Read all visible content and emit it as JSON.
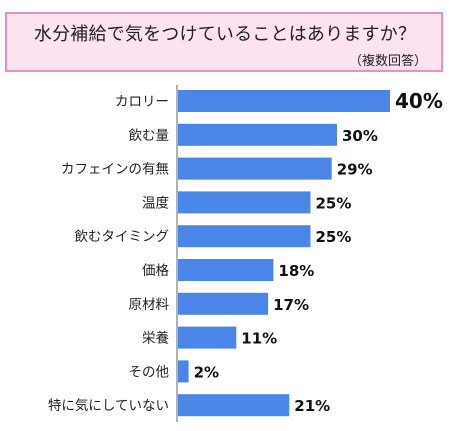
{
  "title": "水分補給で気をつけていることはありますか？",
  "subtitle": "（複数回答）",
  "colors": {
    "bar": "#4a86e8",
    "title_bg": "#fde3ef",
    "title_border": "#ee8fbf"
  },
  "chart_data": {
    "type": "bar",
    "orientation": "horizontal",
    "title": "水分補給で気をつけていることはありますか？",
    "subtitle": "（複数回答）",
    "categories": [
      "カロリー",
      "飲む量",
      "カフェインの有無",
      "温度",
      "飲むタイミング",
      "価格",
      "原材料",
      "栄養",
      "その他",
      "特に気にしていない"
    ],
    "values": [
      40,
      30,
      29,
      25,
      25,
      18,
      17,
      11,
      2,
      21
    ],
    "value_labels": [
      "40%",
      "30%",
      "29%",
      "25%",
      "25%",
      "18%",
      "17%",
      "11%",
      "2%",
      "21%"
    ],
    "unit": "%",
    "xlim": [
      0,
      40
    ]
  }
}
